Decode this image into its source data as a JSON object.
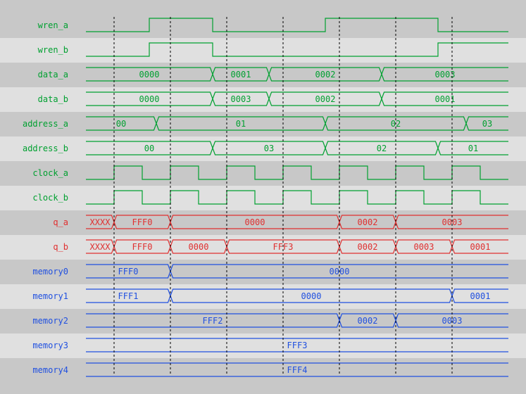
{
  "colors": {
    "bg_dark": "#c8c8c8",
    "bg_light": "#e0e0e0",
    "green": "#00a030",
    "red": "#e03030",
    "blue": "#2050e0",
    "grid": "#000000"
  },
  "time_axis": {
    "start": 0,
    "end": 15
  },
  "cursor_times": [
    1,
    3,
    5,
    7,
    9,
    11,
    13
  ],
  "signals": [
    {
      "name": "wren_a",
      "kind": "bit",
      "color": "green",
      "transitions": [
        [
          0,
          0
        ],
        [
          2.25,
          1
        ],
        [
          4.5,
          0
        ],
        [
          8.5,
          1
        ],
        [
          12.5,
          0
        ]
      ]
    },
    {
      "name": "wren_b",
      "kind": "bit",
      "color": "green",
      "transitions": [
        [
          0,
          0
        ],
        [
          2.25,
          1
        ],
        [
          4.5,
          0
        ],
        [
          12.5,
          1
        ]
      ]
    },
    {
      "name": "data_a",
      "kind": "bus",
      "color": "green",
      "segments": [
        [
          0,
          4.5,
          "0000"
        ],
        [
          4.5,
          6.5,
          "0001"
        ],
        [
          6.5,
          10.5,
          "0002"
        ],
        [
          10.5,
          15,
          "0003"
        ]
      ]
    },
    {
      "name": "data_b",
      "kind": "bus",
      "color": "green",
      "segments": [
        [
          0,
          4.5,
          "0000"
        ],
        [
          4.5,
          6.5,
          "0003"
        ],
        [
          6.5,
          10.5,
          "0002"
        ],
        [
          10.5,
          15,
          "0001"
        ]
      ]
    },
    {
      "name": "address_a",
      "kind": "bus",
      "color": "green",
      "segments": [
        [
          0,
          2.5,
          "00"
        ],
        [
          2.5,
          8.5,
          "01"
        ],
        [
          8.5,
          13.5,
          "02"
        ],
        [
          13.5,
          15,
          "03"
        ]
      ]
    },
    {
      "name": "address_b",
      "kind": "bus",
      "color": "green",
      "segments": [
        [
          0,
          4.5,
          "00"
        ],
        [
          4.5,
          8.5,
          "03"
        ],
        [
          8.5,
          12.5,
          "02"
        ],
        [
          12.5,
          15,
          "01"
        ]
      ]
    },
    {
      "name": "clock_a",
      "kind": "bit",
      "color": "green",
      "transitions": [
        [
          0,
          0
        ],
        [
          1,
          1
        ],
        [
          2,
          0
        ],
        [
          3,
          1
        ],
        [
          4,
          0
        ],
        [
          5,
          1
        ],
        [
          6,
          0
        ],
        [
          7,
          1
        ],
        [
          8,
          0
        ],
        [
          9,
          1
        ],
        [
          10,
          0
        ],
        [
          11,
          1
        ],
        [
          12,
          0
        ],
        [
          13,
          1
        ],
        [
          14,
          0
        ]
      ]
    },
    {
      "name": "clock_b",
      "kind": "bit",
      "color": "green",
      "transitions": [
        [
          0,
          0
        ],
        [
          1,
          1
        ],
        [
          2,
          0
        ],
        [
          3,
          1
        ],
        [
          4,
          0
        ],
        [
          5,
          1
        ],
        [
          6,
          0
        ],
        [
          7,
          1
        ],
        [
          8,
          0
        ],
        [
          9,
          1
        ],
        [
          10,
          0
        ],
        [
          11,
          1
        ],
        [
          12,
          0
        ],
        [
          13,
          1
        ],
        [
          14,
          0
        ]
      ]
    },
    {
      "name": "q_a",
      "kind": "bus",
      "color": "red",
      "segments": [
        [
          0,
          1,
          "XXXX"
        ],
        [
          1,
          3,
          "FFF0"
        ],
        [
          3,
          9,
          "0000"
        ],
        [
          9,
          11,
          "0002"
        ],
        [
          11,
          15,
          "0003"
        ]
      ]
    },
    {
      "name": "q_b",
      "kind": "bus",
      "color": "red",
      "segments": [
        [
          0,
          1,
          "XXXX"
        ],
        [
          1,
          3,
          "FFF0"
        ],
        [
          3,
          5,
          "0000"
        ],
        [
          5,
          9,
          "FFF3"
        ],
        [
          9,
          11,
          "0002"
        ],
        [
          11,
          13,
          "0003"
        ],
        [
          13,
          15,
          "0001"
        ]
      ]
    },
    {
      "name": "memory0",
      "kind": "bus",
      "color": "blue",
      "segments": [
        [
          0,
          3,
          "FFF0"
        ],
        [
          3,
          15,
          "0000"
        ]
      ]
    },
    {
      "name": "memory1",
      "kind": "bus",
      "color": "blue",
      "segments": [
        [
          0,
          3,
          "FFF1"
        ],
        [
          3,
          13,
          "0000"
        ],
        [
          13,
          15,
          "0001"
        ]
      ]
    },
    {
      "name": "memory2",
      "kind": "bus",
      "color": "blue",
      "segments": [
        [
          0,
          9,
          "FFF2"
        ],
        [
          9,
          11,
          "0002"
        ],
        [
          11,
          15,
          "0003"
        ]
      ]
    },
    {
      "name": "memory3",
      "kind": "bus",
      "color": "blue",
      "segments": [
        [
          0,
          15,
          "FFF3"
        ]
      ]
    },
    {
      "name": "memory4",
      "kind": "bus",
      "color": "blue",
      "segments": [
        [
          0,
          15,
          "FFF4"
        ]
      ]
    }
  ]
}
